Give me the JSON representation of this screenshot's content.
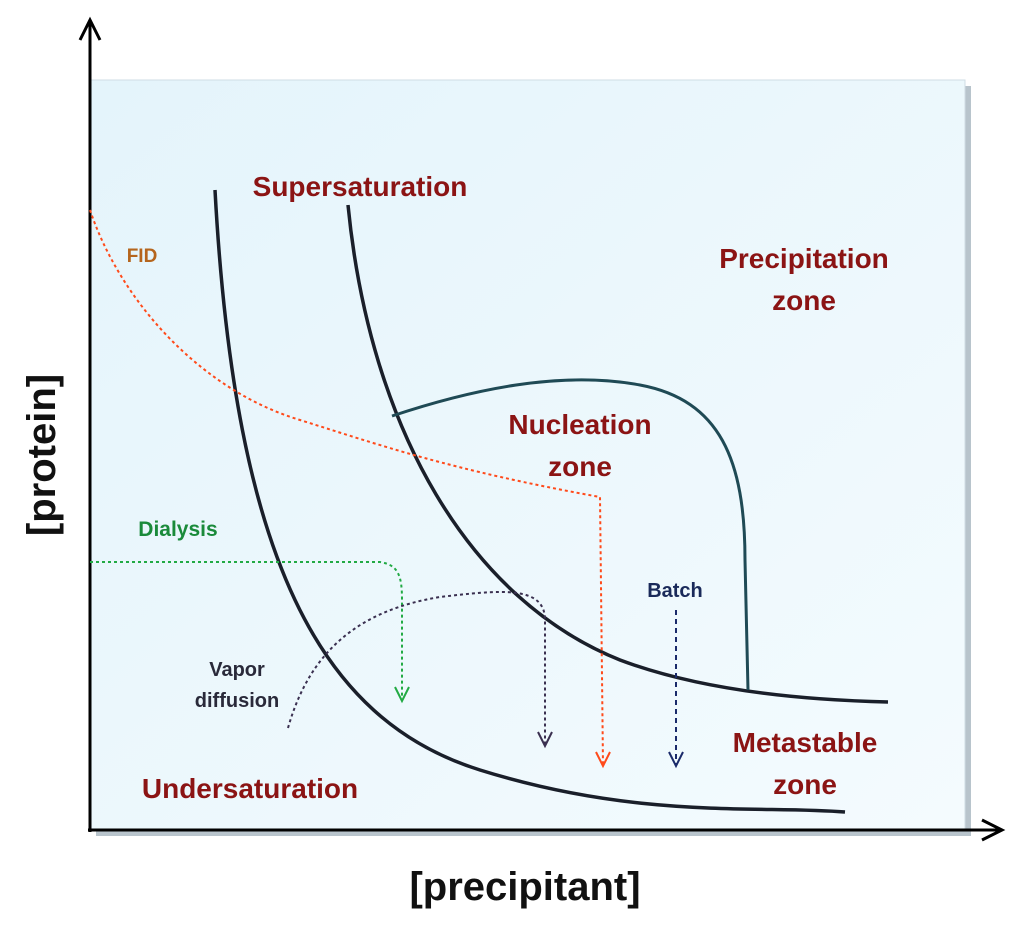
{
  "axes": {
    "y_label": "[protein]",
    "x_label": "[precipitant]"
  },
  "zones": {
    "supersaturation": "Supersaturation",
    "undersaturation": "Undersaturation",
    "precipitation": [
      "Precipitation",
      "zone"
    ],
    "nucleation": [
      "Nucleation",
      "zone"
    ],
    "metastable": [
      "Metastable",
      "zone"
    ]
  },
  "methods": {
    "fid": "FID",
    "dialysis": "Dialysis",
    "vapor_diffusion": [
      "Vapor",
      "diffusion"
    ],
    "batch": "Batch"
  }
}
